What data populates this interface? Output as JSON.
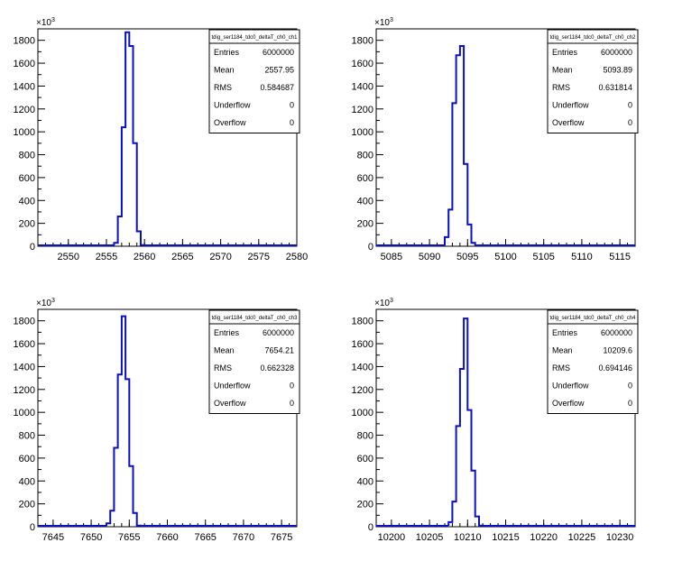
{
  "chart_data": [
    {
      "type": "histogram",
      "title": "tdig_ser1184_tdc0_deltaT_ch0_ch1",
      "xlim": [
        2546,
        2580
      ],
      "ylim": [
        0,
        1.9
      ],
      "y_multiplier": "×10",
      "y_multiplier_exp": "3",
      "bin_width": 0.5,
      "x_ticks": [
        "2550",
        "2555",
        "2560",
        "2565",
        "2570",
        "2575",
        "2580"
      ],
      "y_ticks": [
        "0",
        "200",
        "400",
        "600",
        "800",
        "1000",
        "1200",
        "1400",
        "1600",
        "1800"
      ],
      "bins": [
        {
          "x": 2556.0,
          "y": 0.03
        },
        {
          "x": 2556.5,
          "y": 0.26
        },
        {
          "x": 2557.0,
          "y": 1.04
        },
        {
          "x": 2557.5,
          "y": 1.87
        },
        {
          "x": 2558.0,
          "y": 1.75
        },
        {
          "x": 2558.5,
          "y": 0.9
        },
        {
          "x": 2559.0,
          "y": 0.13
        },
        {
          "x": 2559.5,
          "y": 0.01
        }
      ],
      "stats": [
        {
          "key": "Entries",
          "value": "6000000"
        },
        {
          "key": "Mean",
          "value": "2557.95"
        },
        {
          "key": "RMS",
          "value": "0.584687"
        },
        {
          "key": "Underflow",
          "value": "0"
        },
        {
          "key": "Overflow",
          "value": "0"
        }
      ],
      "line_color": "#0a10c8"
    },
    {
      "type": "histogram",
      "title": "tdig_ser1184_tdc0_deltaT_ch0_ch2",
      "xlim": [
        5083,
        5117
      ],
      "ylim": [
        0,
        1.9
      ],
      "y_multiplier": "×10",
      "y_multiplier_exp": "3",
      "bin_width": 0.5,
      "x_ticks": [
        "5085",
        "5090",
        "5095",
        "5100",
        "5105",
        "5110",
        "5115"
      ],
      "y_ticks": [
        "0",
        "200",
        "400",
        "600",
        "800",
        "1000",
        "1200",
        "1400",
        "1600",
        "1800"
      ],
      "bins": [
        {
          "x": 5092.0,
          "y": 0.08
        },
        {
          "x": 5092.5,
          "y": 0.32
        },
        {
          "x": 5093.0,
          "y": 1.25
        },
        {
          "x": 5093.5,
          "y": 1.67
        },
        {
          "x": 5094.0,
          "y": 1.75
        },
        {
          "x": 5094.5,
          "y": 0.72
        },
        {
          "x": 5095.0,
          "y": 0.19
        },
        {
          "x": 5095.5,
          "y": 0.03
        }
      ],
      "stats": [
        {
          "key": "Entries",
          "value": "6000000"
        },
        {
          "key": "Mean",
          "value": "5093.89"
        },
        {
          "key": "RMS",
          "value": "0.631814"
        },
        {
          "key": "Underflow",
          "value": "0"
        },
        {
          "key": "Overflow",
          "value": "0"
        }
      ],
      "line_color": "#0a10c8"
    },
    {
      "type": "histogram",
      "title": "tdig_ser1184_tdc0_deltaT_ch0_ch3",
      "xlim": [
        7643,
        7677
      ],
      "ylim": [
        0,
        1.9
      ],
      "y_multiplier": "×10",
      "y_multiplier_exp": "3",
      "bin_width": 0.5,
      "x_ticks": [
        "7645",
        "7650",
        "7655",
        "7660",
        "7665",
        "7670",
        "7675"
      ],
      "y_ticks": [
        "0",
        "200",
        "400",
        "600",
        "800",
        "1000",
        "1200",
        "1400",
        "1600",
        "1800"
      ],
      "bins": [
        {
          "x": 7652.0,
          "y": 0.03
        },
        {
          "x": 7652.5,
          "y": 0.14
        },
        {
          "x": 7653.0,
          "y": 0.69
        },
        {
          "x": 7653.5,
          "y": 1.33
        },
        {
          "x": 7654.0,
          "y": 1.84
        },
        {
          "x": 7654.5,
          "y": 1.29
        },
        {
          "x": 7655.0,
          "y": 0.53
        },
        {
          "x": 7655.5,
          "y": 0.12
        },
        {
          "x": 7656.0,
          "y": 0.01
        }
      ],
      "stats": [
        {
          "key": "Entries",
          "value": "6000000"
        },
        {
          "key": "Mean",
          "value": "7654.21"
        },
        {
          "key": "RMS",
          "value": "0.662328"
        },
        {
          "key": "Underflow",
          "value": "0"
        },
        {
          "key": "Overflow",
          "value": "0"
        }
      ],
      "line_color": "#0a10c8"
    },
    {
      "type": "histogram",
      "title": "tdig_ser1184_tdc0_deltaT_ch0_ch4",
      "xlim": [
        10198,
        10232
      ],
      "ylim": [
        0,
        1.9
      ],
      "y_multiplier": "×10",
      "y_multiplier_exp": "3",
      "bin_width": 0.5,
      "x_ticks": [
        "10200",
        "10205",
        "10210",
        "10215",
        "10220",
        "10225",
        "10230"
      ],
      "y_ticks": [
        "0",
        "200",
        "400",
        "600",
        "800",
        "1000",
        "1200",
        "1400",
        "1600",
        "1800"
      ],
      "bins": [
        {
          "x": 10207.5,
          "y": 0.04
        },
        {
          "x": 10208.0,
          "y": 0.22
        },
        {
          "x": 10208.5,
          "y": 0.88
        },
        {
          "x": 10209.0,
          "y": 1.38
        },
        {
          "x": 10209.5,
          "y": 1.82
        },
        {
          "x": 10210.0,
          "y": 1.02
        },
        {
          "x": 10210.5,
          "y": 0.49
        },
        {
          "x": 10211.0,
          "y": 0.09
        },
        {
          "x": 10211.5,
          "y": 0.01
        }
      ],
      "stats": [
        {
          "key": "Entries",
          "value": "6000000"
        },
        {
          "key": "Mean",
          "value": "10209.6"
        },
        {
          "key": "RMS",
          "value": "0.694146"
        },
        {
          "key": "Underflow",
          "value": "0"
        },
        {
          "key": "Overflow",
          "value": "0"
        }
      ],
      "line_color": "#0a10c8"
    }
  ]
}
